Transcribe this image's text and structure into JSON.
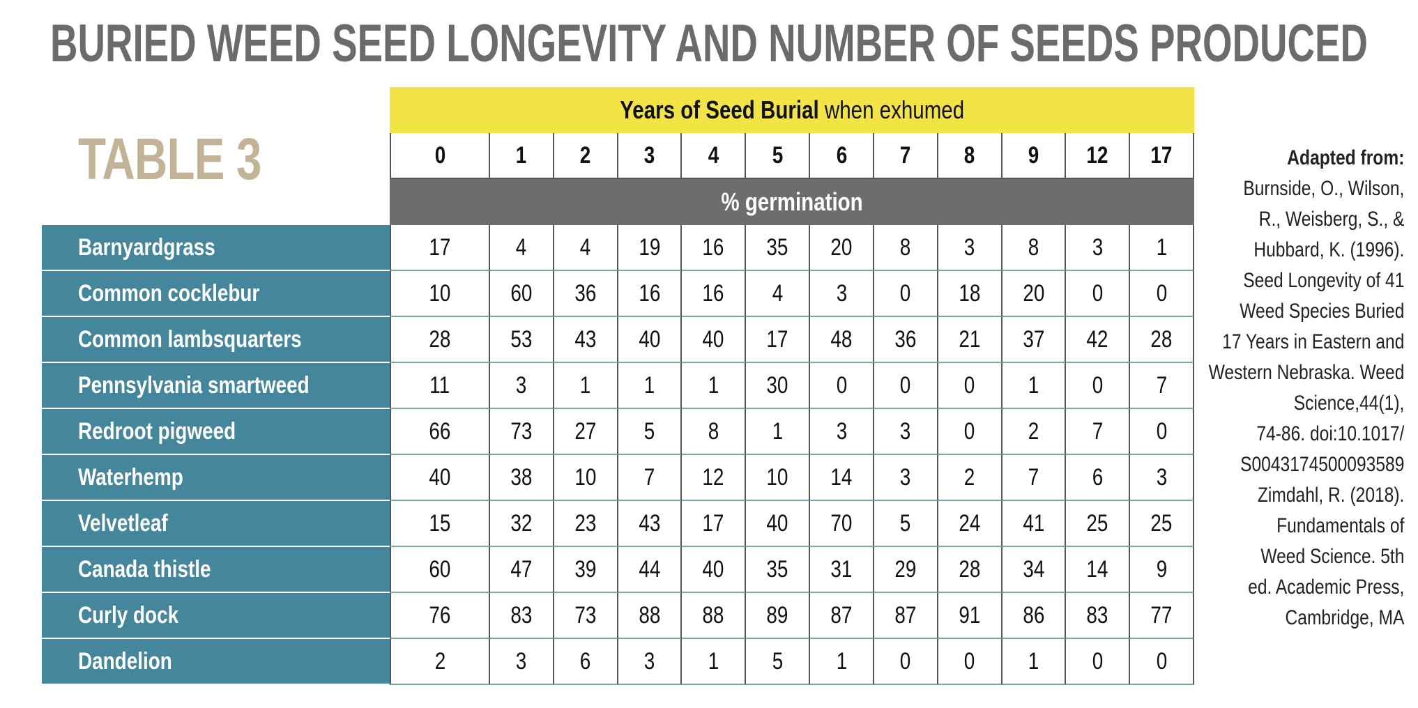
{
  "title": "BURIED WEED SEED LONGEVITY AND NUMBER OF SEEDS PRODUCED",
  "table_label": "TABLE 3",
  "table": {
    "header": {
      "bold": "Years of Seed Burial",
      "rest": "when exhumed"
    },
    "columns": [
      0,
      1,
      2,
      3,
      4,
      5,
      6,
      7,
      8,
      9,
      12,
      17
    ],
    "subheader": "% germination",
    "rows": [
      {
        "name": "Barnyardgrass",
        "values": [
          17,
          4,
          4,
          19,
          16,
          35,
          20,
          8,
          3,
          8,
          3,
          1
        ]
      },
      {
        "name": "Common cocklebur",
        "values": [
          10,
          60,
          36,
          16,
          16,
          4,
          3,
          0,
          18,
          20,
          0,
          0
        ]
      },
      {
        "name": "Common lambsquarters",
        "values": [
          28,
          53,
          43,
          40,
          40,
          17,
          48,
          36,
          21,
          37,
          42,
          28
        ]
      },
      {
        "name": "Pennsylvania smartweed",
        "values": [
          11,
          3,
          1,
          1,
          1,
          30,
          0,
          0,
          0,
          1,
          0,
          7
        ]
      },
      {
        "name": "Redroot pigweed",
        "values": [
          66,
          73,
          27,
          5,
          8,
          1,
          3,
          3,
          0,
          2,
          7,
          0
        ]
      },
      {
        "name": "Waterhemp",
        "values": [
          40,
          38,
          10,
          7,
          12,
          10,
          14,
          3,
          2,
          7,
          6,
          3
        ]
      },
      {
        "name": "Velvetleaf",
        "values": [
          15,
          32,
          23,
          43,
          17,
          40,
          70,
          5,
          24,
          41,
          25,
          25
        ]
      },
      {
        "name": "Canada thistle",
        "values": [
          60,
          47,
          39,
          44,
          40,
          35,
          31,
          29,
          28,
          34,
          14,
          9
        ]
      },
      {
        "name": "Curly dock",
        "values": [
          76,
          83,
          73,
          88,
          88,
          89,
          87,
          87,
          91,
          86,
          83,
          77
        ]
      },
      {
        "name": "Dandelion",
        "values": [
          2,
          3,
          6,
          3,
          1,
          5,
          1,
          0,
          0,
          1,
          0,
          0
        ]
      }
    ]
  },
  "source": {
    "heading": "Adapted from:",
    "lines": [
      "Burnside, O., Wilson,",
      "R., Weisberg, S., &",
      "Hubbard, K. (1996).",
      "Seed Longevity of 41",
      "Weed Species Buried",
      "17 Years in Eastern and",
      "Western Nebraska. Weed",
      "Science,44(1),",
      "74-86. doi:10.1017/",
      "S0043174500093589",
      "Zimdahl, R. (2018).",
      "Fundamentals of",
      "Weed Science. 5th",
      "ed. Academic Press,",
      "Cambridge, MA"
    ]
  }
}
